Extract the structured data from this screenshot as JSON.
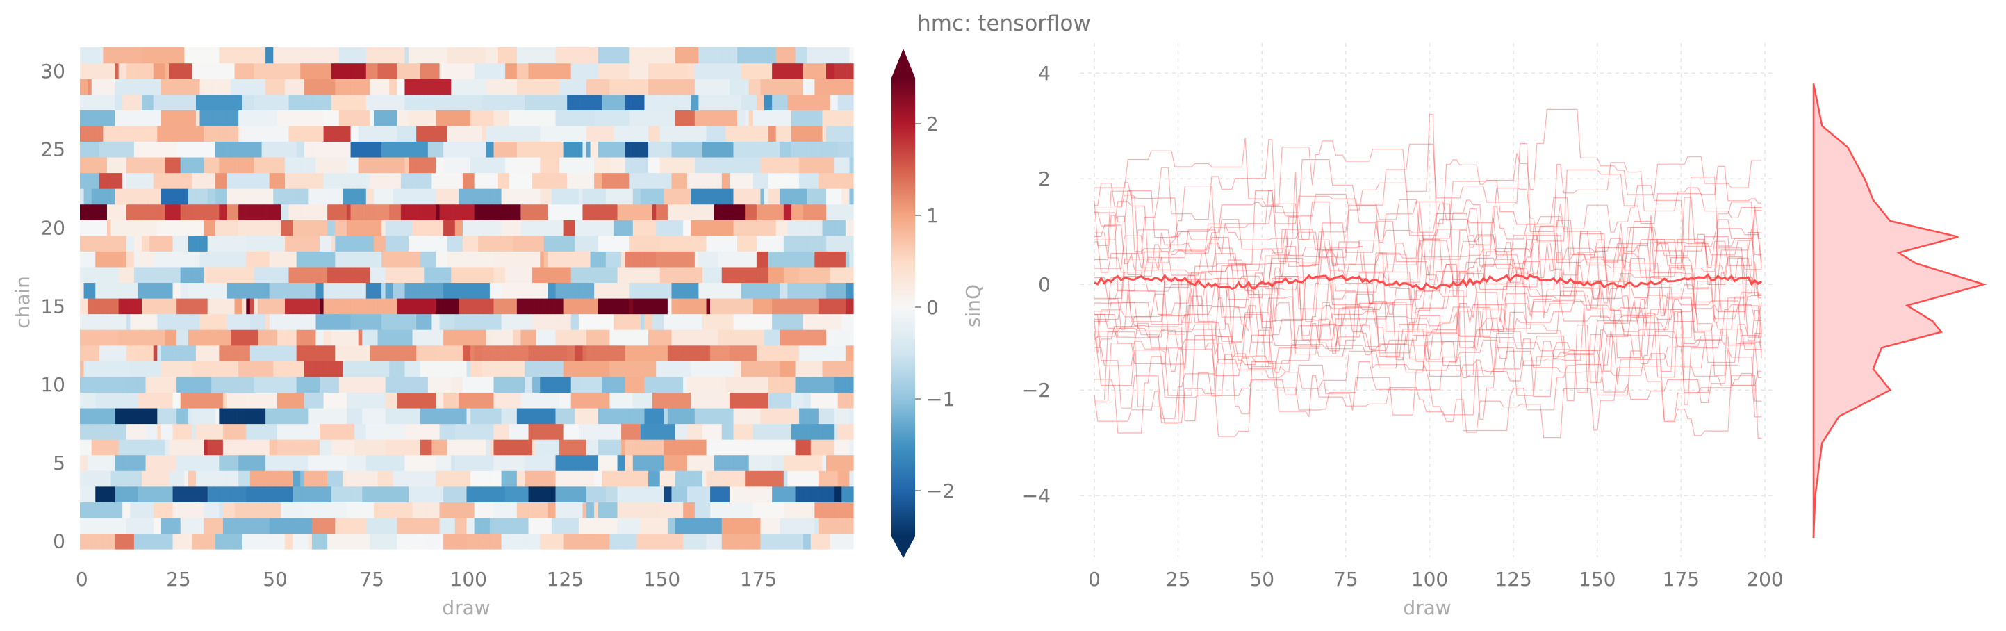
{
  "title": "hmc: tensorflow",
  "colors": {
    "trace": "#ff4d4d",
    "kde_fill": "#ffc8c8",
    "grid": "#e6e6e6",
    "text": "#777777",
    "label": "#aaaaaa"
  },
  "chart_data": [
    {
      "type": "heatmap",
      "xlabel": "draw",
      "ylabel": "chain",
      "xlim": [
        0,
        199
      ],
      "ylim": [
        0,
        31
      ],
      "x_ticks": [
        0,
        25,
        50,
        75,
        100,
        125,
        150,
        175
      ],
      "y_ticks": [
        0,
        5,
        10,
        15,
        20,
        25,
        30
      ],
      "n_draws": 200,
      "n_chains": 32,
      "colormap": "RdBu_r",
      "colorbar": {
        "label": "sinQ",
        "range": [
          -2.5,
          2.5
        ],
        "ticks": [
          2,
          1,
          0,
          -1,
          -2
        ],
        "tick_labels": [
          "2",
          "1",
          "0",
          "−1",
          "−2"
        ],
        "extend": "both"
      },
      "chain_levels": [
        0.1,
        -0.4,
        0.3,
        -2.4,
        0.2,
        -0.5,
        0.8,
        -0.2,
        -1.0,
        0.4,
        -0.6,
        0.3,
        1.2,
        0.5,
        -0.8,
        2.5,
        -1.1,
        0.5,
        0.2,
        -0.3,
        0.8,
        2.5,
        -0.6,
        0.6,
        0.2,
        -1.0,
        0.4,
        0.3,
        -0.7,
        0.9,
        1.5,
        -0.2
      ]
    },
    {
      "type": "line",
      "xlabel": "draw",
      "ylabel": "",
      "xlim": [
        0,
        200
      ],
      "ylim": [
        -5.3,
        4.7
      ],
      "x_ticks": [
        0,
        25,
        50,
        75,
        100,
        125,
        150,
        175,
        200
      ],
      "y_ticks": [
        4,
        2,
        0,
        -2,
        -4
      ],
      "y_tick_labels": [
        "4",
        "2",
        "0",
        "−2",
        "−4"
      ],
      "grid": true,
      "n_chains": 32,
      "chain_levels": [
        2.3,
        1.8,
        1.5,
        1.1,
        0.9,
        0.9,
        0.7,
        0.6,
        0.5,
        0.3,
        0.2,
        0.1,
        0.0,
        -0.1,
        -0.3,
        -0.5,
        -0.6,
        -0.7,
        -0.8,
        -0.9,
        -1.0,
        -1.1,
        -1.2,
        -1.4,
        -1.6,
        -1.8,
        -2.0,
        -2.3,
        0.4,
        -0.4,
        1.3,
        -1.3
      ],
      "mean_series_value": 0.05,
      "kde": {
        "x": [
          -4.8,
          -4.0,
          -3.0,
          -2.5,
          -2.0,
          -1.6,
          -1.2,
          -0.9,
          -0.7,
          -0.4,
          0.0,
          0.4,
          0.6,
          0.9,
          1.2,
          1.6,
          2.0,
          2.6,
          3.0,
          3.8
        ],
        "density": [
          0.0,
          0.01,
          0.05,
          0.15,
          0.45,
          0.35,
          0.4,
          0.75,
          0.7,
          0.55,
          1.0,
          0.6,
          0.5,
          0.85,
          0.45,
          0.35,
          0.3,
          0.2,
          0.05,
          0.0
        ]
      }
    }
  ]
}
